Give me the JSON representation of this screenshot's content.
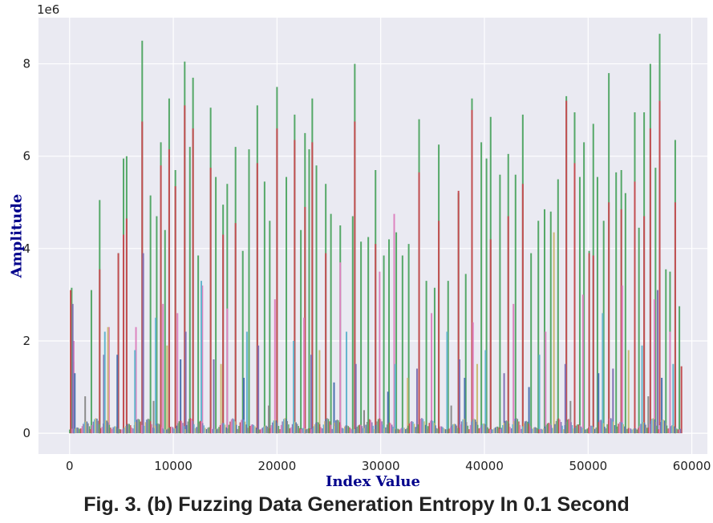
{
  "caption": "Fig. 3. (b) Fuzzing Data Generation Entropy In 0.1 Second",
  "chart_data": {
    "type": "line",
    "title": "",
    "xlabel": "Index Value",
    "ylabel": "Amplitude",
    "y_offset_label": "1e6",
    "xlim": [
      -3000,
      61500
    ],
    "ylim": [
      -0.45,
      9.0
    ],
    "x_ticks": [
      0,
      10000,
      20000,
      30000,
      40000,
      50000,
      60000
    ],
    "x_tick_labels": [
      "0",
      "10000",
      "20000",
      "30000",
      "40000",
      "50000",
      "60000"
    ],
    "y_ticks": [
      0,
      2,
      4,
      6,
      8
    ],
    "y_tick_labels": [
      "0",
      "2",
      "4",
      "6",
      "8"
    ],
    "y_units": "x 1e6",
    "grid": true,
    "legend": "none",
    "background": "#eaeaf2",
    "series": [
      {
        "color": "#55a868",
        "peaks": [
          {
            "x": 200,
            "y": 3.15
          },
          {
            "x": 2100,
            "y": 3.1
          },
          {
            "x": 2900,
            "y": 5.05
          },
          {
            "x": 4700,
            "y": 3.9
          },
          {
            "x": 5200,
            "y": 5.95
          },
          {
            "x": 5500,
            "y": 6.0
          },
          {
            "x": 7000,
            "y": 8.5
          },
          {
            "x": 7800,
            "y": 5.15
          },
          {
            "x": 8400,
            "y": 4.7
          },
          {
            "x": 8800,
            "y": 6.3
          },
          {
            "x": 9200,
            "y": 4.4
          },
          {
            "x": 9600,
            "y": 7.25
          },
          {
            "x": 10200,
            "y": 5.7
          },
          {
            "x": 11100,
            "y": 8.05
          },
          {
            "x": 11600,
            "y": 6.2
          },
          {
            "x": 11900,
            "y": 7.7
          },
          {
            "x": 12400,
            "y": 3.85
          },
          {
            "x": 13600,
            "y": 7.05
          },
          {
            "x": 14100,
            "y": 5.55
          },
          {
            "x": 14800,
            "y": 4.95
          },
          {
            "x": 15200,
            "y": 5.4
          },
          {
            "x": 16000,
            "y": 6.2
          },
          {
            "x": 16700,
            "y": 3.95
          },
          {
            "x": 17300,
            "y": 6.15
          },
          {
            "x": 18100,
            "y": 7.1
          },
          {
            "x": 18800,
            "y": 5.45
          },
          {
            "x": 19300,
            "y": 4.6
          },
          {
            "x": 20000,
            "y": 7.5
          },
          {
            "x": 20900,
            "y": 5.55
          },
          {
            "x": 21700,
            "y": 6.9
          },
          {
            "x": 22300,
            "y": 4.4
          },
          {
            "x": 22700,
            "y": 6.5
          },
          {
            "x": 23100,
            "y": 6.15
          },
          {
            "x": 23400,
            "y": 7.25
          },
          {
            "x": 23800,
            "y": 5.8
          },
          {
            "x": 24700,
            "y": 5.4
          },
          {
            "x": 25200,
            "y": 4.75
          },
          {
            "x": 26100,
            "y": 4.5
          },
          {
            "x": 27300,
            "y": 4.7
          },
          {
            "x": 27500,
            "y": 8.0
          },
          {
            "x": 28100,
            "y": 4.15
          },
          {
            "x": 28800,
            "y": 4.25
          },
          {
            "x": 29500,
            "y": 5.7
          },
          {
            "x": 30300,
            "y": 3.85
          },
          {
            "x": 30800,
            "y": 4.2
          },
          {
            "x": 31500,
            "y": 4.35
          },
          {
            "x": 32100,
            "y": 3.85
          },
          {
            "x": 32700,
            "y": 4.1
          },
          {
            "x": 33700,
            "y": 6.8
          },
          {
            "x": 34400,
            "y": 3.3
          },
          {
            "x": 35200,
            "y": 3.15
          },
          {
            "x": 35600,
            "y": 6.25
          },
          {
            "x": 36500,
            "y": 3.3
          },
          {
            "x": 37500,
            "y": 5.2
          },
          {
            "x": 38200,
            "y": 3.45
          },
          {
            "x": 38800,
            "y": 7.25
          },
          {
            "x": 39700,
            "y": 6.3
          },
          {
            "x": 40200,
            "y": 5.95
          },
          {
            "x": 40600,
            "y": 6.85
          },
          {
            "x": 41500,
            "y": 5.6
          },
          {
            "x": 42300,
            "y": 6.05
          },
          {
            "x": 43000,
            "y": 5.6
          },
          {
            "x": 43700,
            "y": 6.9
          },
          {
            "x": 44500,
            "y": 3.9
          },
          {
            "x": 45200,
            "y": 4.6
          },
          {
            "x": 45800,
            "y": 4.85
          },
          {
            "x": 46400,
            "y": 4.8
          },
          {
            "x": 47100,
            "y": 5.5
          },
          {
            "x": 47900,
            "y": 7.3
          },
          {
            "x": 48700,
            "y": 6.95
          },
          {
            "x": 49200,
            "y": 5.55
          },
          {
            "x": 49600,
            "y": 6.3
          },
          {
            "x": 50100,
            "y": 3.95
          },
          {
            "x": 50500,
            "y": 6.7
          },
          {
            "x": 50900,
            "y": 5.55
          },
          {
            "x": 51500,
            "y": 4.6
          },
          {
            "x": 52000,
            "y": 7.8
          },
          {
            "x": 52700,
            "y": 5.65
          },
          {
            "x": 53200,
            "y": 5.7
          },
          {
            "x": 53600,
            "y": 5.2
          },
          {
            "x": 54500,
            "y": 6.95
          },
          {
            "x": 54900,
            "y": 4.45
          },
          {
            "x": 55400,
            "y": 6.95
          },
          {
            "x": 56000,
            "y": 8.0
          },
          {
            "x": 56500,
            "y": 5.75
          },
          {
            "x": 56900,
            "y": 8.65
          },
          {
            "x": 57500,
            "y": 3.55
          },
          {
            "x": 57900,
            "y": 3.5
          },
          {
            "x": 58400,
            "y": 6.35
          },
          {
            "x": 58800,
            "y": 2.75
          }
        ]
      },
      {
        "color": "#c44e52",
        "peaks": [
          {
            "x": 100,
            "y": 3.1
          },
          {
            "x": 400,
            "y": 1.55
          },
          {
            "x": 2900,
            "y": 3.55
          },
          {
            "x": 4700,
            "y": 3.9
          },
          {
            "x": 5200,
            "y": 4.3
          },
          {
            "x": 5500,
            "y": 4.65
          },
          {
            "x": 7000,
            "y": 6.75
          },
          {
            "x": 8800,
            "y": 5.8
          },
          {
            "x": 9600,
            "y": 6.15
          },
          {
            "x": 10200,
            "y": 5.35
          },
          {
            "x": 11100,
            "y": 7.1
          },
          {
            "x": 11900,
            "y": 6.6
          },
          {
            "x": 13600,
            "y": 5.75
          },
          {
            "x": 14800,
            "y": 4.3
          },
          {
            "x": 16000,
            "y": 4.55
          },
          {
            "x": 18100,
            "y": 5.85
          },
          {
            "x": 20000,
            "y": 6.6
          },
          {
            "x": 21700,
            "y": 6.35
          },
          {
            "x": 22700,
            "y": 4.9
          },
          {
            "x": 23400,
            "y": 6.3
          },
          {
            "x": 24700,
            "y": 3.9
          },
          {
            "x": 27500,
            "y": 6.75
          },
          {
            "x": 29500,
            "y": 4.1
          },
          {
            "x": 33700,
            "y": 5.65
          },
          {
            "x": 35600,
            "y": 4.6
          },
          {
            "x": 37500,
            "y": 5.25
          },
          {
            "x": 38800,
            "y": 7.0
          },
          {
            "x": 40600,
            "y": 4.2
          },
          {
            "x": 42300,
            "y": 4.7
          },
          {
            "x": 43700,
            "y": 5.4
          },
          {
            "x": 47900,
            "y": 7.2
          },
          {
            "x": 48700,
            "y": 5.85
          },
          {
            "x": 50100,
            "y": 3.9
          },
          {
            "x": 50500,
            "y": 3.85
          },
          {
            "x": 52000,
            "y": 5.0
          },
          {
            "x": 53200,
            "y": 4.85
          },
          {
            "x": 54500,
            "y": 5.45
          },
          {
            "x": 55400,
            "y": 4.7
          },
          {
            "x": 56000,
            "y": 6.6
          },
          {
            "x": 56900,
            "y": 7.2
          },
          {
            "x": 58400,
            "y": 5.0
          },
          {
            "x": 59000,
            "y": 1.45
          }
        ]
      },
      {
        "color": "#dd84c0",
        "peaks": [
          {
            "x": 400,
            "y": 2.0
          },
          {
            "x": 3800,
            "y": 2.3
          },
          {
            "x": 6400,
            "y": 2.3
          },
          {
            "x": 7100,
            "y": 3.8
          },
          {
            "x": 9000,
            "y": 2.8
          },
          {
            "x": 10400,
            "y": 2.6
          },
          {
            "x": 12800,
            "y": 3.2
          },
          {
            "x": 15200,
            "y": 2.7
          },
          {
            "x": 19800,
            "y": 2.9
          },
          {
            "x": 22600,
            "y": 2.5
          },
          {
            "x": 26100,
            "y": 3.7
          },
          {
            "x": 29900,
            "y": 3.5
          },
          {
            "x": 31300,
            "y": 4.75
          },
          {
            "x": 34900,
            "y": 2.6
          },
          {
            "x": 38900,
            "y": 2.4
          },
          {
            "x": 42800,
            "y": 2.8
          },
          {
            "x": 45900,
            "y": 2.2
          },
          {
            "x": 49500,
            "y": 3.0
          },
          {
            "x": 53300,
            "y": 3.2
          },
          {
            "x": 56400,
            "y": 2.9
          },
          {
            "x": 57900,
            "y": 2.2
          }
        ]
      },
      {
        "color": "#8172b3",
        "peaks": [
          {
            "x": 300,
            "y": 2.8
          },
          {
            "x": 3300,
            "y": 1.7
          },
          {
            "x": 7100,
            "y": 3.9
          },
          {
            "x": 11200,
            "y": 2.2
          },
          {
            "x": 13900,
            "y": 1.6
          },
          {
            "x": 18200,
            "y": 1.9
          },
          {
            "x": 23300,
            "y": 1.7
          },
          {
            "x": 27600,
            "y": 1.5
          },
          {
            "x": 33500,
            "y": 1.4
          },
          {
            "x": 37600,
            "y": 1.6
          },
          {
            "x": 41900,
            "y": 1.3
          },
          {
            "x": 47800,
            "y": 1.5
          },
          {
            "x": 52400,
            "y": 1.4
          },
          {
            "x": 56700,
            "y": 3.1
          }
        ]
      },
      {
        "color": "#64b5cd",
        "peaks": [
          {
            "x": 3400,
            "y": 2.2
          },
          {
            "x": 6300,
            "y": 1.8
          },
          {
            "x": 8300,
            "y": 2.5
          },
          {
            "x": 12700,
            "y": 3.3
          },
          {
            "x": 17100,
            "y": 2.2
          },
          {
            "x": 21600,
            "y": 2.0
          },
          {
            "x": 26700,
            "y": 2.2
          },
          {
            "x": 31400,
            "y": 1.5
          },
          {
            "x": 36400,
            "y": 2.2
          },
          {
            "x": 40100,
            "y": 1.8
          },
          {
            "x": 45300,
            "y": 1.7
          },
          {
            "x": 51400,
            "y": 2.6
          },
          {
            "x": 55200,
            "y": 1.9
          },
          {
            "x": 58200,
            "y": 1.5
          }
        ]
      },
      {
        "color": "#ccb974",
        "peaks": [
          {
            "x": 3700,
            "y": 2.3
          },
          {
            "x": 9400,
            "y": 1.9
          },
          {
            "x": 14600,
            "y": 1.5
          },
          {
            "x": 24100,
            "y": 1.8
          },
          {
            "x": 32600,
            "y": 1.2
          },
          {
            "x": 39300,
            "y": 1.5
          },
          {
            "x": 46700,
            "y": 4.35
          },
          {
            "x": 53900,
            "y": 1.8
          }
        ]
      },
      {
        "color": "#4c72b0",
        "peaks": [
          {
            "x": 500,
            "y": 1.3
          },
          {
            "x": 4600,
            "y": 1.7
          },
          {
            "x": 10700,
            "y": 1.6
          },
          {
            "x": 16800,
            "y": 1.2
          },
          {
            "x": 25500,
            "y": 1.1
          },
          {
            "x": 30700,
            "y": 0.9
          },
          {
            "x": 38100,
            "y": 1.2
          },
          {
            "x": 44300,
            "y": 1.0
          },
          {
            "x": 51000,
            "y": 1.3
          },
          {
            "x": 57100,
            "y": 1.2
          }
        ]
      },
      {
        "color": "#8c8c8c",
        "peaks": [
          {
            "x": 1500,
            "y": 0.8
          },
          {
            "x": 8100,
            "y": 0.7
          },
          {
            "x": 19200,
            "y": 0.6
          },
          {
            "x": 28400,
            "y": 0.5
          },
          {
            "x": 36800,
            "y": 0.6
          },
          {
            "x": 48300,
            "y": 0.7
          },
          {
            "x": 55800,
            "y": 0.8
          }
        ]
      }
    ]
  }
}
